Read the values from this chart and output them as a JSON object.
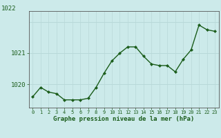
{
  "hours": [
    0,
    1,
    2,
    3,
    4,
    5,
    6,
    7,
    8,
    9,
    10,
    11,
    12,
    13,
    14,
    15,
    16,
    17,
    18,
    19,
    20,
    21,
    22,
    23
  ],
  "pressure": [
    1019.6,
    1019.9,
    1019.75,
    1019.7,
    1019.5,
    1019.5,
    1019.5,
    1019.55,
    1019.9,
    1020.35,
    1020.75,
    1021.0,
    1021.2,
    1021.2,
    1020.9,
    1020.65,
    1020.6,
    1020.6,
    1020.4,
    1020.8,
    1021.1,
    1021.9,
    1021.75,
    1021.7
  ],
  "line_color": "#1a5c1a",
  "marker_color": "#1a5c1a",
  "bg_color": "#cceaea",
  "grid_color": "#b8d8d8",
  "xlabel": "Graphe pression niveau de la mer (hPa)",
  "xlabel_color": "#1a5c1a",
  "tick_color": "#1a5c1a",
  "ylim": [
    1019.25,
    1022.35
  ],
  "yticks": [
    1020,
    1021
  ],
  "xlim": [
    -0.5,
    23.5
  ]
}
